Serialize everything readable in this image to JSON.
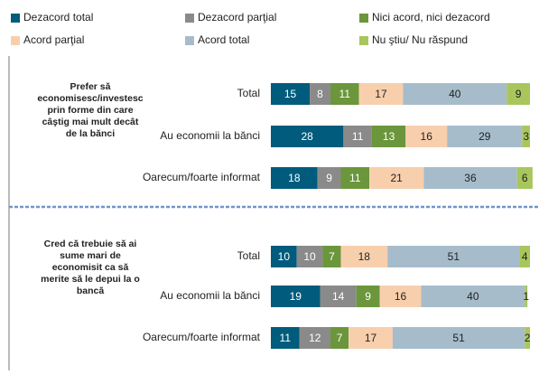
{
  "chart_data": [
    {
      "type": "bar",
      "stacked": true,
      "title": [
        "Prefer să",
        "economisesc/investesc",
        "prin forme din care",
        "câştig mai mult decât",
        "de la bănci"
      ],
      "categories": [
        "Total",
        "Au economii la bănci",
        "Oarecum/foarte informat"
      ],
      "xlim": [
        0,
        100
      ],
      "series": [
        {
          "name": "Dezacord total",
          "color": "#005b7c",
          "label_color": "#ffffff",
          "values": [
            15,
            28,
            18
          ]
        },
        {
          "name": "Dezacord parţial",
          "color": "#8a8a8a",
          "label_color": "#ffffff",
          "values": [
            8,
            11,
            9
          ]
        },
        {
          "name": "Nici acord, nici dezacord",
          "color": "#6b963c",
          "label_color": "#ffffff",
          "values": [
            11,
            13,
            11
          ]
        },
        {
          "name": "Acord parţial",
          "color": "#f8cfad",
          "label_color": "#222222",
          "values": [
            17,
            16,
            21
          ]
        },
        {
          "name": "Acord total",
          "color": "#a6bccb",
          "label_color": "#222222",
          "values": [
            40,
            29,
            36
          ]
        },
        {
          "name": "Nu ştiu/ Nu răspund",
          "color": "#a9c65c",
          "label_color": "#222222",
          "values": [
            9,
            3,
            6
          ]
        }
      ]
    },
    {
      "type": "bar",
      "stacked": true,
      "title": [
        "Cred că trebuie să ai",
        "sume mari de",
        "economisit ca să",
        "merite să le depui la o",
        "bancă"
      ],
      "categories": [
        "Total",
        "Au economii la bănci",
        "Oarecum/foarte informat"
      ],
      "xlim": [
        0,
        100
      ],
      "series": [
        {
          "color": "#005b7c",
          "label_color": "#ffffff",
          "values": [
            10,
            19,
            11
          ]
        },
        {
          "color": "#8a8a8a",
          "label_color": "#ffffff",
          "values": [
            10,
            14,
            12
          ]
        },
        {
          "color": "#6b963c",
          "label_color": "#ffffff",
          "values": [
            7,
            9,
            7
          ]
        },
        {
          "color": "#f8cfad",
          "label_color": "#222222",
          "values": [
            18,
            16,
            17
          ]
        },
        {
          "color": "#a6bccb",
          "label_color": "#222222",
          "values": [
            51,
            40,
            51
          ]
        },
        {
          "color": "#a9c65c",
          "label_color": "#222222",
          "values": [
            4,
            1,
            2
          ]
        }
      ]
    }
  ]
}
